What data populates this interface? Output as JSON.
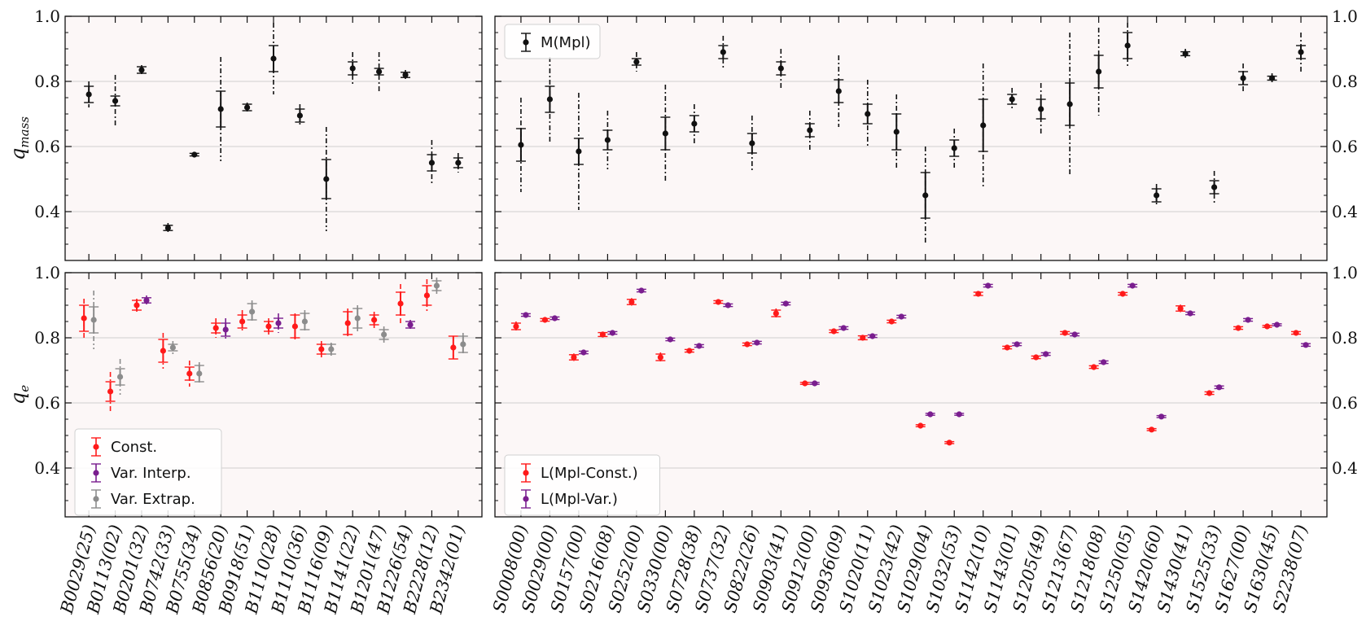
{
  "figure": {
    "ylabels": [
      "q_mass",
      "q_e"
    ],
    "colors": {
      "panel_bg": "#fcf7f7",
      "mpl": "#111111",
      "const": "#ff1a1a",
      "var_interp": "#7a1e8f",
      "var_extrap": "#8c8c8c",
      "grid": "#cfcfcf"
    },
    "y_ticks": [
      "0.4",
      "0.6",
      "0.8",
      "1.0"
    ],
    "legend_top": [
      "M(Mpl)"
    ],
    "legend_bottom_left": [
      "Const.",
      "Var. Interp.",
      "Var. Extrap."
    ],
    "legend_bottom_right": [
      "L(Mpl-Const.)",
      "L(Mpl-Var.)"
    ]
  },
  "chart_data": [
    {
      "type": "scatter",
      "panel": "top-left",
      "ylabel": "q_mass",
      "ylim": [
        0.25,
        1.0
      ],
      "grid": true,
      "categories": [
        "B0029(25)",
        "B0113(02)",
        "B0201(32)",
        "B0742(33)",
        "B0755(34)",
        "B0856(20)",
        "B0918(51)",
        "B1110(28)",
        "B1110(36)",
        "B1116(09)",
        "B1141(22)",
        "B1201(47)",
        "B1226(54)",
        "B2228(12)",
        "B2342(01)"
      ],
      "series": [
        {
          "name": "M(Mpl)",
          "values": [
            0.76,
            0.74,
            0.835,
            0.35,
            0.575,
            0.715,
            0.72,
            0.87,
            0.695,
            0.5,
            0.84,
            0.83,
            0.82,
            0.55,
            0.55
          ],
          "err1": [
            0.025,
            0.015,
            0.01,
            0.008,
            0.004,
            0.055,
            0.01,
            0.04,
            0.02,
            0.06,
            0.02,
            0.01,
            0.008,
            0.025,
            0.015
          ],
          "err2": [
            0.04,
            0.08,
            0.015,
            0.015,
            0.006,
            0.16,
            0.015,
            0.11,
            0.035,
            0.16,
            0.05,
            0.06,
            0.015,
            0.07,
            0.03
          ]
        }
      ]
    },
    {
      "type": "scatter",
      "panel": "top-right",
      "ylabel": "q_mass",
      "ylim": [
        0.25,
        1.0
      ],
      "grid": true,
      "legend": "top-left",
      "categories": [
        "S0008(00)",
        "S0029(00)",
        "S0157(00)",
        "S0216(08)",
        "S0252(00)",
        "S0330(00)",
        "S0728(38)",
        "S0737(32)",
        "S0822(26)",
        "S0903(41)",
        "S0912(00)",
        "S0936(09)",
        "S1020(11)",
        "S1023(42)",
        "S1029(04)",
        "S1032(53)",
        "S1142(10)",
        "S1143(01)",
        "S1205(49)",
        "S1213(67)",
        "S1218(08)",
        "S1250(05)",
        "S1420(60)",
        "S1430(41)",
        "S1525(33)",
        "S1627(00)",
        "S1630(45)",
        "S2238(07)"
      ],
      "series": [
        {
          "name": "M(Mpl)",
          "values": [
            0.605,
            0.745,
            0.585,
            0.62,
            0.86,
            0.64,
            0.67,
            0.89,
            0.61,
            0.84,
            0.65,
            0.77,
            0.7,
            0.645,
            0.45,
            0.595,
            0.665,
            0.745,
            0.715,
            0.73,
            0.83,
            0.91,
            0.45,
            0.885,
            0.475,
            0.81,
            0.81,
            0.89
          ],
          "err1": [
            0.05,
            0.04,
            0.04,
            0.03,
            0.01,
            0.05,
            0.025,
            0.02,
            0.03,
            0.02,
            0.02,
            0.035,
            0.03,
            0.055,
            0.07,
            0.025,
            0.08,
            0.015,
            0.03,
            0.065,
            0.05,
            0.04,
            0.02,
            0.006,
            0.02,
            0.02,
            0.006,
            0.02
          ],
          "err2": [
            0.145,
            0.13,
            0.18,
            0.09,
            0.03,
            0.15,
            0.06,
            0.05,
            0.085,
            0.06,
            0.06,
            0.11,
            0.105,
            0.115,
            0.15,
            0.06,
            0.19,
            0.035,
            0.08,
            0.22,
            0.135,
            0.07,
            0.035,
            0.015,
            0.05,
            0.045,
            0.015,
            0.06
          ]
        }
      ]
    },
    {
      "type": "scatter",
      "panel": "bottom-left",
      "ylabel": "q_e",
      "ylim": [
        0.25,
        1.0
      ],
      "grid": true,
      "legend": "bottom-left",
      "categories": [
        "B0029(25)",
        "B0113(02)",
        "B0201(32)",
        "B0742(33)",
        "B0755(34)",
        "B0856(20)",
        "B0918(51)",
        "B1110(28)",
        "B1110(36)",
        "B1116(09)",
        "B1141(22)",
        "B1201(47)",
        "B1226(54)",
        "B2228(12)",
        "B2342(01)"
      ],
      "series": [
        {
          "name": "Const.",
          "values": [
            0.86,
            0.635,
            0.9,
            0.76,
            0.69,
            0.83,
            0.85,
            0.835,
            0.835,
            0.765,
            0.845,
            0.855,
            0.905,
            0.93,
            0.77
          ],
          "err1": [
            0.04,
            0.03,
            0.015,
            0.035,
            0.02,
            0.015,
            0.02,
            0.015,
            0.035,
            0.015,
            0.035,
            0.015,
            0.035,
            0.03,
            0.035
          ],
          "err2": [
            0.06,
            0.06,
            0.02,
            0.055,
            0.04,
            0.03,
            0.035,
            0.025,
            0.04,
            0.025,
            0.045,
            0.025,
            0.06,
            0.05,
            0.035
          ]
        },
        {
          "name": "Var. Interp.",
          "index": [
            2,
            5,
            7,
            12
          ],
          "values": [
            0.915,
            0.825,
            0.845,
            0.84
          ],
          "err1": [
            0.008,
            0.02,
            0.015,
            0.01
          ],
          "err2": [
            0.015,
            0.035,
            0.03,
            0.015
          ]
        },
        {
          "name": "Var. Extrap.",
          "index": [
            0,
            1,
            3,
            4,
            6,
            8,
            9,
            10,
            11,
            13,
            14
          ],
          "values": [
            0.855,
            0.68,
            0.77,
            0.69,
            0.88,
            0.85,
            0.765,
            0.86,
            0.81,
            0.96,
            0.78
          ],
          "err1": [
            0.04,
            0.025,
            0.01,
            0.025,
            0.025,
            0.025,
            0.015,
            0.03,
            0.015,
            0.015,
            0.025
          ],
          "err2": [
            0.09,
            0.055,
            0.02,
            0.035,
            0.035,
            0.035,
            0.02,
            0.04,
            0.025,
            0.025,
            0.035
          ]
        }
      ]
    },
    {
      "type": "scatter",
      "panel": "bottom-right",
      "ylabel": "q_e",
      "ylim": [
        0.25,
        1.0
      ],
      "grid": true,
      "legend": "bottom-left",
      "categories": [
        "S0008(00)",
        "S0029(00)",
        "S0157(00)",
        "S0216(08)",
        "S0252(00)",
        "S0330(00)",
        "S0728(38)",
        "S0737(32)",
        "S0822(26)",
        "S0903(41)",
        "S0912(00)",
        "S0936(09)",
        "S1020(11)",
        "S1023(42)",
        "S1029(04)",
        "S1032(53)",
        "S1142(10)",
        "S1143(01)",
        "S1205(49)",
        "S1213(67)",
        "S1218(08)",
        "S1250(05)",
        "S1420(60)",
        "S1430(41)",
        "S1525(33)",
        "S1627(00)",
        "S1630(45)",
        "S2238(07)"
      ],
      "series": [
        {
          "name": "L(Mpl-Const.)",
          "values": [
            0.835,
            0.855,
            0.74,
            0.81,
            0.91,
            0.74,
            0.76,
            0.91,
            0.78,
            0.875,
            0.66,
            0.82,
            0.8,
            0.85,
            0.53,
            0.478,
            0.935,
            0.77,
            0.74,
            0.815,
            0.71,
            0.935,
            0.518,
            0.89,
            0.63,
            0.83,
            0.835,
            0.815
          ],
          "err1": [
            0.01,
            0.004,
            0.008,
            0.006,
            0.008,
            0.01,
            0.004,
            0.004,
            0.004,
            0.01,
            0.003,
            0.004,
            0.006,
            0.004,
            0.003,
            0.003,
            0.005,
            0.004,
            0.004,
            0.004,
            0.004,
            0.004,
            0.003,
            0.008,
            0.004,
            0.004,
            0.003,
            0.004
          ],
          "err2": [
            0.015,
            0.006,
            0.012,
            0.009,
            0.012,
            0.015,
            0.006,
            0.006,
            0.006,
            0.015,
            0.005,
            0.006,
            0.009,
            0.006,
            0.005,
            0.005,
            0.008,
            0.006,
            0.006,
            0.006,
            0.006,
            0.006,
            0.005,
            0.012,
            0.006,
            0.006,
            0.005,
            0.006
          ]
        },
        {
          "name": "L(Mpl-Var.)",
          "values": [
            0.87,
            0.86,
            0.755,
            0.815,
            0.945,
            0.795,
            0.775,
            0.9,
            0.785,
            0.905,
            0.66,
            0.83,
            0.805,
            0.865,
            0.565,
            0.565,
            0.96,
            0.78,
            0.75,
            0.81,
            0.725,
            0.96,
            0.558,
            0.875,
            0.648,
            0.855,
            0.84,
            0.778
          ],
          "err1": [
            0.004,
            0.004,
            0.004,
            0.004,
            0.004,
            0.004,
            0.004,
            0.004,
            0.004,
            0.004,
            0.003,
            0.004,
            0.004,
            0.004,
            0.003,
            0.003,
            0.004,
            0.004,
            0.004,
            0.004,
            0.004,
            0.004,
            0.003,
            0.004,
            0.004,
            0.004,
            0.003,
            0.004
          ],
          "err2": [
            0.006,
            0.006,
            0.006,
            0.006,
            0.006,
            0.006,
            0.006,
            0.006,
            0.006,
            0.006,
            0.005,
            0.006,
            0.006,
            0.006,
            0.005,
            0.005,
            0.006,
            0.006,
            0.006,
            0.006,
            0.006,
            0.006,
            0.005,
            0.006,
            0.006,
            0.006,
            0.005,
            0.006
          ]
        }
      ]
    }
  ]
}
